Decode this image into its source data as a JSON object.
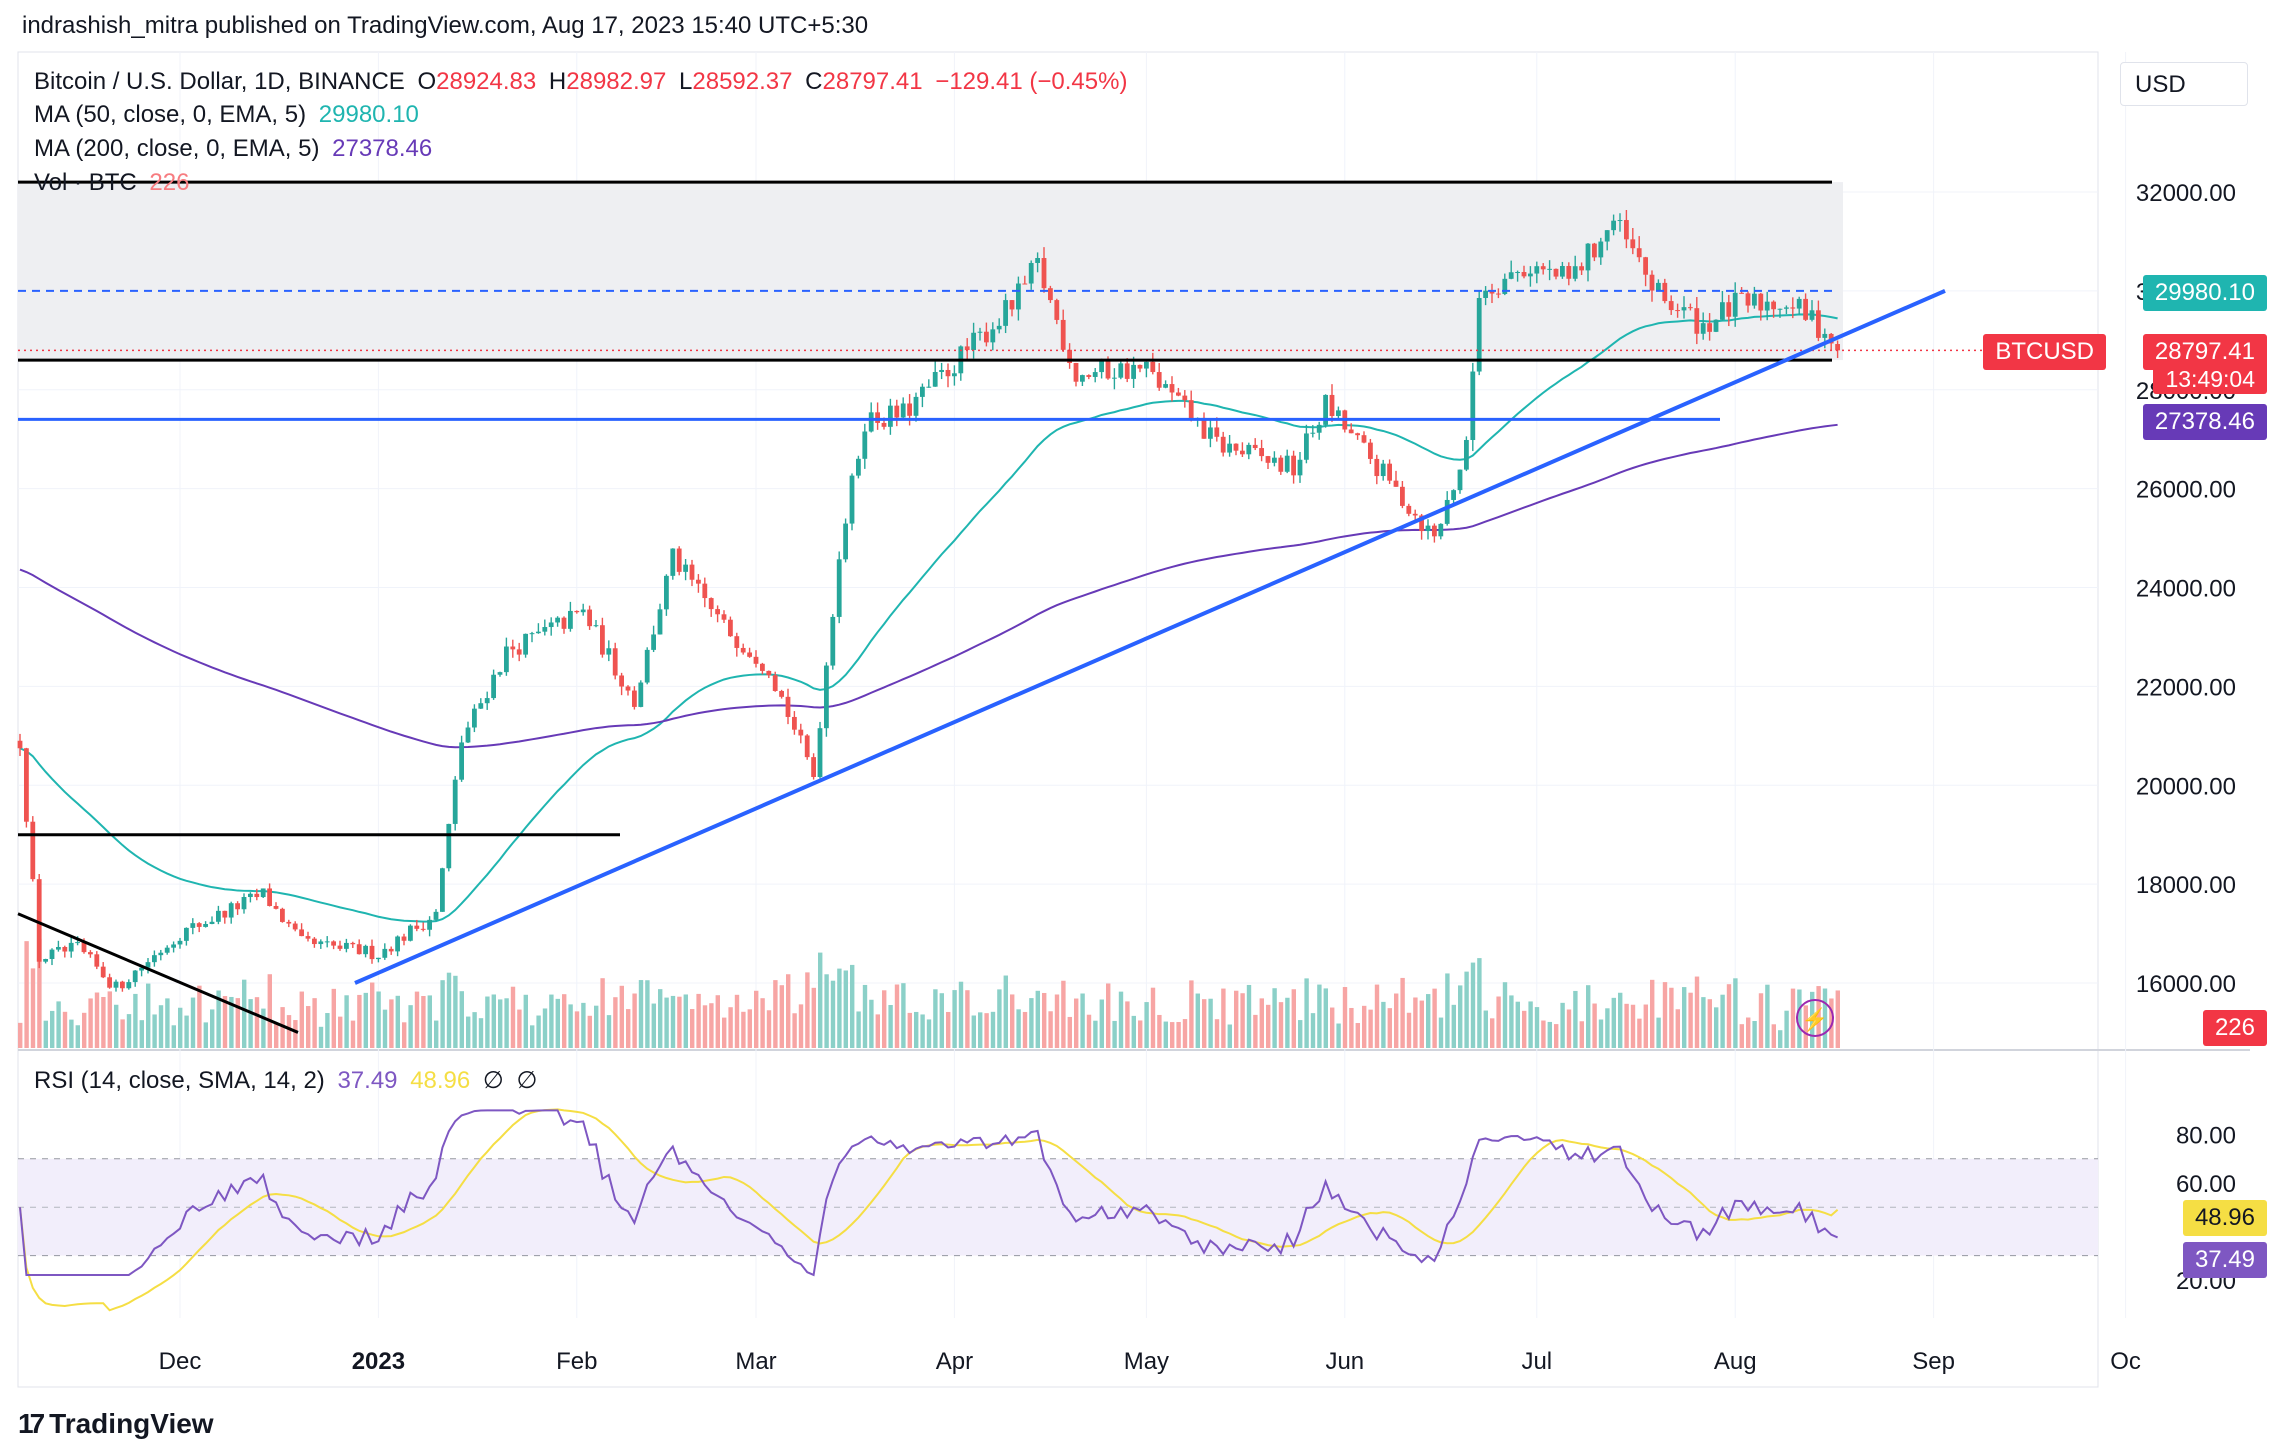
{
  "header": {
    "text": "indrashish_mitra published on TradingView.com, Aug 17, 2023 15:40 UTC+5:30"
  },
  "main_legend": {
    "symbol": "Bitcoin / U.S. Dollar, 1D, BINANCE",
    "o_label": "O",
    "o": "28924.83",
    "h_label": "H",
    "h": "28982.97",
    "l_label": "L",
    "l": "28592.37",
    "c_label": "C",
    "c": "28797.41",
    "change": "−129.41 (−0.45%)",
    "ma50_label": "MA (50, close, 0, EMA, 5)",
    "ma50_value": "29980.10",
    "ma200_label": "MA (200, close, 0, EMA, 5)",
    "ma200_value": "27378.46",
    "vol_label": "Vol · BTC",
    "vol_value": "226"
  },
  "rsi_legend": {
    "label": "RSI (14, close, SMA, 14, 2)",
    "rsi": "37.49",
    "sma": "48.96",
    "na1": "∅",
    "na2": "∅"
  },
  "currency_button": "USD",
  "price_labels": {
    "ma50": "29980.10",
    "symbol": "BTCUSD",
    "last": "28797.41",
    "countdown": "13:49:04",
    "ma200": "27378.46",
    "volume": "226",
    "rsi_sma": "48.96",
    "rsi": "37.49"
  },
  "colors": {
    "up": "#26a69a",
    "down": "#ef5350",
    "ma50": "#1fb5b0",
    "ma200": "#673ab7",
    "rsi": "#7e57c2",
    "rsi_ma": "#f5de44",
    "trendline": "#2962ff",
    "level": "#000000"
  },
  "footer": {
    "brand": "TradingView",
    "logo": "17"
  },
  "chart_data": {
    "type": "candlestick",
    "title": "Bitcoin / U.S. Dollar, 1D, BINANCE",
    "price_ticks": [
      "32000.00",
      "30000.00",
      "28000.00",
      "26000.00",
      "24000.00",
      "22000.00",
      "20000.00",
      "18000.00",
      "16000.00"
    ],
    "ylim": [
      15000,
      33500
    ],
    "time_ticks": [
      "Dec",
      "2023",
      "Feb",
      "Mar",
      "Apr",
      "May",
      "Jun",
      "Jul",
      "Aug",
      "Sep",
      "Oc"
    ],
    "closes_approx": [
      {
        "date": "2022-11-06",
        "close": 20900
      },
      {
        "date": "2022-11-09",
        "close": 16500
      },
      {
        "date": "2022-11-15",
        "close": 16700
      },
      {
        "date": "2022-11-21",
        "close": 15900
      },
      {
        "date": "2022-12-01",
        "close": 17000
      },
      {
        "date": "2022-12-14",
        "close": 17800
      },
      {
        "date": "2022-12-20",
        "close": 16800
      },
      {
        "date": "2023-01-01",
        "close": 16600
      },
      {
        "date": "2023-01-10",
        "close": 17400
      },
      {
        "date": "2023-01-14",
        "close": 20900
      },
      {
        "date": "2023-01-21",
        "close": 22700
      },
      {
        "date": "2023-02-02",
        "close": 23500
      },
      {
        "date": "2023-02-10",
        "close": 21700
      },
      {
        "date": "2023-02-16",
        "close": 24600
      },
      {
        "date": "2023-02-24",
        "close": 23200
      },
      {
        "date": "2023-03-03",
        "close": 22400
      },
      {
        "date": "2023-03-10",
        "close": 20200
      },
      {
        "date": "2023-03-14",
        "close": 24700
      },
      {
        "date": "2023-03-18",
        "close": 27400
      },
      {
        "date": "2023-03-24",
        "close": 27500
      },
      {
        "date": "2023-04-10",
        "close": 29700
      },
      {
        "date": "2023-04-14",
        "close": 30500
      },
      {
        "date": "2023-04-20",
        "close": 28300
      },
      {
        "date": "2023-04-26",
        "close": 28400
      },
      {
        "date": "2023-05-01",
        "close": 28400
      },
      {
        "date": "2023-05-12",
        "close": 26900
      },
      {
        "date": "2023-05-24",
        "close": 26400
      },
      {
        "date": "2023-05-29",
        "close": 27700
      },
      {
        "date": "2023-06-10",
        "close": 25800
      },
      {
        "date": "2023-06-15",
        "close": 25000
      },
      {
        "date": "2023-06-20",
        "close": 26800
      },
      {
        "date": "2023-06-22",
        "close": 30000
      },
      {
        "date": "2023-06-30",
        "close": 30500
      },
      {
        "date": "2023-07-06",
        "close": 30200
      },
      {
        "date": "2023-07-13",
        "close": 31400
      },
      {
        "date": "2023-07-20",
        "close": 29900
      },
      {
        "date": "2023-07-27",
        "close": 29300
      },
      {
        "date": "2023-08-01",
        "close": 29700
      },
      {
        "date": "2023-08-09",
        "close": 29800
      },
      {
        "date": "2023-08-15",
        "close": 29200
      },
      {
        "date": "2023-08-17",
        "close": 28797.41
      }
    ],
    "series": [
      {
        "name": "MA (50, close, 0, EMA, 5)",
        "last": 29980.1
      },
      {
        "name": "MA (200, close, 0, EMA, 5)",
        "last": 27378.46
      }
    ],
    "horizontal_levels": [
      32200,
      28600,
      27400,
      19000
    ],
    "rsi": {
      "ticks": [
        "80.00",
        "60.00",
        "20.00"
      ],
      "ylim": [
        20,
        92
      ],
      "band": [
        70,
        30
      ],
      "last": 37.49,
      "sma_last": 48.96
    }
  }
}
